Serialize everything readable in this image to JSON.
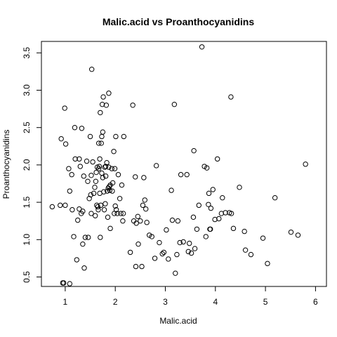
{
  "chart_data": {
    "type": "scatter",
    "title": "Malic.acid vs Proanthocyanidins",
    "xlabel": "Malic.acid",
    "ylabel": "Proanthocyanidins",
    "xlim": [
      0.74,
      5.8
    ],
    "ylim": [
      0.41,
      3.58
    ],
    "xticks": [
      1,
      2,
      3,
      4,
      5,
      6
    ],
    "yticks": [
      0.5,
      1.0,
      1.5,
      2.0,
      2.5,
      3.0,
      3.5
    ],
    "xtick_labels": [
      "1",
      "2",
      "3",
      "4",
      "5",
      "6"
    ],
    "ytick_labels": [
      "0.5",
      "1.0",
      "1.5",
      "2.0",
      "2.5",
      "3.0",
      "3.5"
    ],
    "grid": false,
    "legend": "none",
    "points": [
      [
        0.74,
        1.44
      ],
      [
        0.9,
        1.46
      ],
      [
        0.92,
        2.35
      ],
      [
        0.95,
        0.42
      ],
      [
        0.97,
        0.42
      ],
      [
        0.99,
        2.76
      ],
      [
        1.0,
        1.46
      ],
      [
        1.01,
        2.28
      ],
      [
        1.07,
        1.95
      ],
      [
        1.09,
        1.65
      ],
      [
        1.09,
        0.41
      ],
      [
        1.13,
        1.87
      ],
      [
        1.14,
        1.4
      ],
      [
        1.17,
        1.04
      ],
      [
        1.19,
        2.5
      ],
      [
        1.2,
        2.08
      ],
      [
        1.23,
        0.73
      ],
      [
        1.25,
        1.26
      ],
      [
        1.28,
        2.08
      ],
      [
        1.28,
        1.41
      ],
      [
        1.3,
        1.98
      ],
      [
        1.32,
        1.35
      ],
      [
        1.33,
        2.49
      ],
      [
        1.35,
        1.38
      ],
      [
        1.35,
        0.94
      ],
      [
        1.37,
        1.85
      ],
      [
        1.38,
        0.62
      ],
      [
        1.4,
        1.03
      ],
      [
        1.43,
        2.05
      ],
      [
        1.45,
        1.78
      ],
      [
        1.46,
        1.03
      ],
      [
        1.48,
        1.55
      ],
      [
        1.5,
        2.38
      ],
      [
        1.51,
        1.6
      ],
      [
        1.52,
        1.86
      ],
      [
        1.52,
        1.35
      ],
      [
        1.53,
        3.28
      ],
      [
        1.55,
        2.04
      ],
      [
        1.57,
        1.62
      ],
      [
        1.59,
        1.7
      ],
      [
        1.6,
        1.32
      ],
      [
        1.61,
        1.78
      ],
      [
        1.62,
        1.9
      ],
      [
        1.63,
        1.46
      ],
      [
        1.64,
        1.97
      ],
      [
        1.65,
        1.44
      ],
      [
        1.66,
        1.4
      ],
      [
        1.67,
        2.29
      ],
      [
        1.67,
        1.95
      ],
      [
        1.68,
        1.98
      ],
      [
        1.69,
        2.08
      ],
      [
        1.69,
        1.62
      ],
      [
        1.7,
        1.03
      ],
      [
        1.7,
        2.7
      ],
      [
        1.71,
        1.46
      ],
      [
        1.72,
        2.29
      ],
      [
        1.73,
        1.89
      ],
      [
        1.73,
        2.38
      ],
      [
        1.74,
        2.81
      ],
      [
        1.75,
        1.83
      ],
      [
        1.75,
        2.44
      ],
      [
        1.76,
        2.91
      ],
      [
        1.77,
        1.64
      ],
      [
        1.78,
        1.4
      ],
      [
        1.79,
        1.97
      ],
      [
        1.8,
        1.48
      ],
      [
        1.81,
        1.98
      ],
      [
        1.81,
        1.85
      ],
      [
        1.82,
        2.8
      ],
      [
        1.83,
        2.03
      ],
      [
        1.84,
        1.65
      ],
      [
        1.85,
        1.3
      ],
      [
        1.86,
        1.69
      ],
      [
        1.87,
        2.96
      ],
      [
        1.87,
        1.97
      ],
      [
        1.88,
        1.71
      ],
      [
        1.89,
        1.66
      ],
      [
        1.9,
        1.15
      ],
      [
        1.9,
        1.73
      ],
      [
        1.93,
        1.95
      ],
      [
        1.94,
        1.65
      ],
      [
        1.95,
        1.76
      ],
      [
        1.97,
        2.18
      ],
      [
        1.98,
        1.35
      ],
      [
        1.99,
        1.95
      ],
      [
        2.0,
        1.45
      ],
      [
        2.01,
        2.38
      ],
      [
        2.02,
        1.4
      ],
      [
        2.04,
        1.35
      ],
      [
        2.06,
        1.87
      ],
      [
        2.09,
        1.55
      ],
      [
        2.11,
        1.35
      ],
      [
        2.13,
        1.73
      ],
      [
        2.15,
        1.25
      ],
      [
        2.16,
        1.35
      ],
      [
        2.17,
        2.38
      ],
      [
        2.3,
        0.83
      ],
      [
        2.35,
        2.8
      ],
      [
        2.37,
        1.25
      ],
      [
        2.4,
        1.84
      ],
      [
        2.41,
        0.64
      ],
      [
        2.42,
        1.22
      ],
      [
        2.45,
        1.31
      ],
      [
        2.46,
        0.94
      ],
      [
        2.5,
        1.25
      ],
      [
        2.53,
        0.64
      ],
      [
        2.55,
        1.46
      ],
      [
        2.57,
        1.83
      ],
      [
        2.59,
        1.53
      ],
      [
        2.61,
        1.41
      ],
      [
        2.63,
        1.23
      ],
      [
        2.68,
        1.06
      ],
      [
        2.73,
        1.04
      ],
      [
        2.79,
        0.75
      ],
      [
        2.82,
        1.99
      ],
      [
        2.88,
        0.96
      ],
      [
        2.94,
        0.81
      ],
      [
        2.97,
        0.83
      ],
      [
        3.02,
        1.13
      ],
      [
        3.06,
        0.74
      ],
      [
        3.12,
        1.66
      ],
      [
        3.14,
        1.26
      ],
      [
        3.18,
        2.81
      ],
      [
        3.2,
        0.55
      ],
      [
        3.23,
        0.8
      ],
      [
        3.25,
        1.25
      ],
      [
        3.29,
        0.96
      ],
      [
        3.31,
        1.87
      ],
      [
        3.36,
        0.97
      ],
      [
        3.43,
        1.87
      ],
      [
        3.46,
        0.84
      ],
      [
        3.48,
        0.95
      ],
      [
        3.52,
        0.82
      ],
      [
        3.56,
        1.3
      ],
      [
        3.57,
        2.19
      ],
      [
        3.59,
        0.88
      ],
      [
        3.63,
        1.14
      ],
      [
        3.67,
        1.46
      ],
      [
        3.73,
        3.58
      ],
      [
        3.78,
        1.98
      ],
      [
        3.81,
        1.04
      ],
      [
        3.83,
        1.96
      ],
      [
        3.86,
        1.47
      ],
      [
        3.87,
        1.62
      ],
      [
        3.89,
        1.14
      ],
      [
        3.9,
        1.14
      ],
      [
        3.91,
        1.42
      ],
      [
        3.95,
        1.67
      ],
      [
        3.99,
        1.27
      ],
      [
        4.04,
        2.08
      ],
      [
        4.07,
        1.28
      ],
      [
        4.12,
        1.35
      ],
      [
        4.14,
        1.56
      ],
      [
        4.2,
        1.36
      ],
      [
        4.28,
        1.36
      ],
      [
        4.31,
        2.91
      ],
      [
        4.32,
        1.35
      ],
      [
        4.36,
        1.15
      ],
      [
        4.48,
        1.7
      ],
      [
        4.58,
        1.11
      ],
      [
        4.6,
        0.86
      ],
      [
        4.71,
        0.8
      ],
      [
        4.95,
        1.02
      ],
      [
        5.04,
        0.68
      ],
      [
        5.19,
        1.56
      ],
      [
        5.51,
        1.1
      ],
      [
        5.65,
        1.06
      ],
      [
        5.8,
        2.01
      ]
    ]
  }
}
